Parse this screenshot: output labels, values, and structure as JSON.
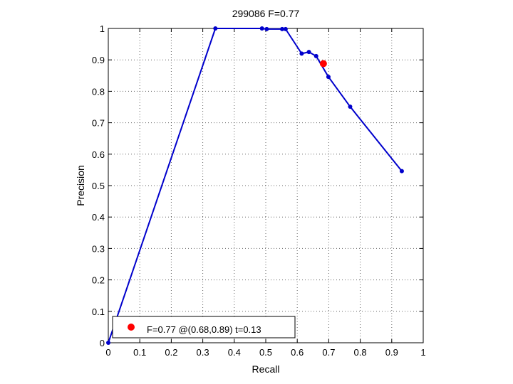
{
  "chart_data": {
    "type": "line",
    "title": "299086 F=0.77",
    "xlabel": "Recall",
    "ylabel": "Precision",
    "xlim": [
      0,
      1
    ],
    "ylim": [
      0,
      1
    ],
    "grid": true,
    "x_ticks": [
      "0",
      "0.1",
      "0.2",
      "0.3",
      "0.4",
      "0.5",
      "0.6",
      "0.7",
      "0.8",
      "0.9",
      "1"
    ],
    "y_ticks": [
      "0",
      "0.1",
      "0.2",
      "0.3",
      "0.4",
      "0.5",
      "0.6",
      "0.7",
      "0.8",
      "0.9",
      "1"
    ],
    "series": [
      {
        "color": "#0000cc",
        "points": [
          {
            "x": 0.0,
            "y": 0.0
          },
          {
            "x": 0.34,
            "y": 1.0
          },
          {
            "x": 0.488,
            "y": 1.0
          },
          {
            "x": 0.503,
            "y": 0.998
          },
          {
            "x": 0.552,
            "y": 0.998
          },
          {
            "x": 0.563,
            "y": 0.998
          },
          {
            "x": 0.614,
            "y": 0.92
          },
          {
            "x": 0.637,
            "y": 0.925
          },
          {
            "x": 0.66,
            "y": 0.912
          },
          {
            "x": 0.699,
            "y": 0.846
          },
          {
            "x": 0.768,
            "y": 0.751
          },
          {
            "x": 0.932,
            "y": 0.546
          }
        ]
      }
    ],
    "highlight": {
      "x": 0.683,
      "y": 0.888,
      "color": "#ff0000"
    },
    "legend": {
      "position": "bottom-left",
      "text": "F=0.77 @(0.68,0.89) t=0.13"
    }
  }
}
